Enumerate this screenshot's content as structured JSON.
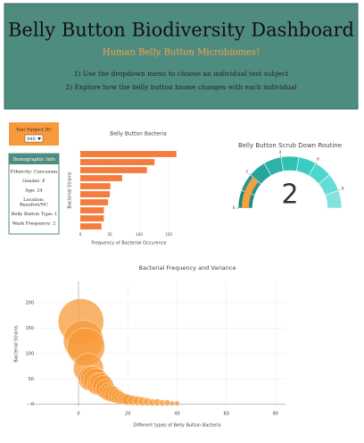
{
  "header": {
    "title": "Belly Button Biodiversity Dashboard",
    "subtitle": "Human Belly Button Microbiomes!",
    "instructions": [
      "1) Use the dropdown menu to choose an individual test subject",
      "2) Explore how the belly button biome changes with each individual"
    ]
  },
  "selector": {
    "label": "Test Subject ID:",
    "selected": "940"
  },
  "demographics": {
    "title": "Demographic Info",
    "lines": [
      "Ethnicity: Caucasian",
      "Gender: F",
      "Age: 24",
      "Location:",
      "Beaufort/NC",
      "Belly Button Type: I",
      "Wash Frequency: 2"
    ]
  },
  "chart_data": [
    {
      "type": "bar",
      "orientation": "horizontal",
      "title": "Belly Button Bacteria",
      "x_label": "Frequency of Bacterial Occurence",
      "y_label": "Bacterial Strains",
      "categories": [
        null,
        null,
        null,
        null,
        null,
        null,
        null,
        null,
        null,
        null
      ],
      "values": [
        163,
        126,
        113,
        71,
        51,
        50,
        47,
        40,
        40,
        36
      ],
      "color": "#f47c3c",
      "xlim": [
        0,
        165
      ],
      "xticks": [
        0,
        50,
        100,
        150
      ],
      "grid": true
    },
    {
      "type": "gauge",
      "title": "Belly Button Scrub Down Routine",
      "value": 2,
      "range": [
        0,
        9
      ],
      "ticks": [
        0,
        2,
        4,
        6,
        8
      ],
      "color": "#f4a040",
      "band_colors": [
        "#1e8a86",
        "#22988f",
        "#26a59b",
        "#2ab3a6",
        "#30c0b3",
        "#3accc2",
        "#4dd6cd",
        "#66dcd6",
        "#84e2dd"
      ]
    },
    {
      "type": "scatter",
      "title": "Bacterial Frequency and Variance",
      "x_label": "Different types of Belly Button Bacteria",
      "y_label": "Bacterial Strains",
      "x": [
        1,
        2,
        3,
        4,
        5,
        6,
        7,
        8,
        9,
        10,
        11,
        12,
        13,
        14,
        15,
        16,
        17,
        18,
        19,
        20,
        22,
        24,
        26,
        28,
        30,
        32,
        34,
        36,
        38,
        40
      ],
      "series": [
        {
          "values": [
            163,
            126,
            113,
            71,
            51,
            50,
            47,
            40,
            40,
            36,
            30,
            25,
            22,
            20,
            17,
            15,
            13,
            11,
            10,
            9,
            8,
            7,
            6,
            5,
            4,
            4,
            3,
            3,
            2,
            2
          ],
          "sizes": [
            163,
            126,
            113,
            71,
            51,
            50,
            47,
            40,
            40,
            36,
            30,
            25,
            22,
            20,
            17,
            15,
            13,
            11,
            10,
            9,
            8,
            7,
            6,
            5,
            4,
            4,
            3,
            3,
            2,
            2
          ],
          "color": "#f7993a"
        }
      ],
      "xlim": [
        -21,
        84
      ],
      "xticks": [
        0,
        20,
        40,
        60,
        80
      ],
      "ylim": [
        -4,
        242
      ],
      "yticks": [
        0,
        50,
        100,
        150,
        200
      ],
      "grid": true
    }
  ]
}
